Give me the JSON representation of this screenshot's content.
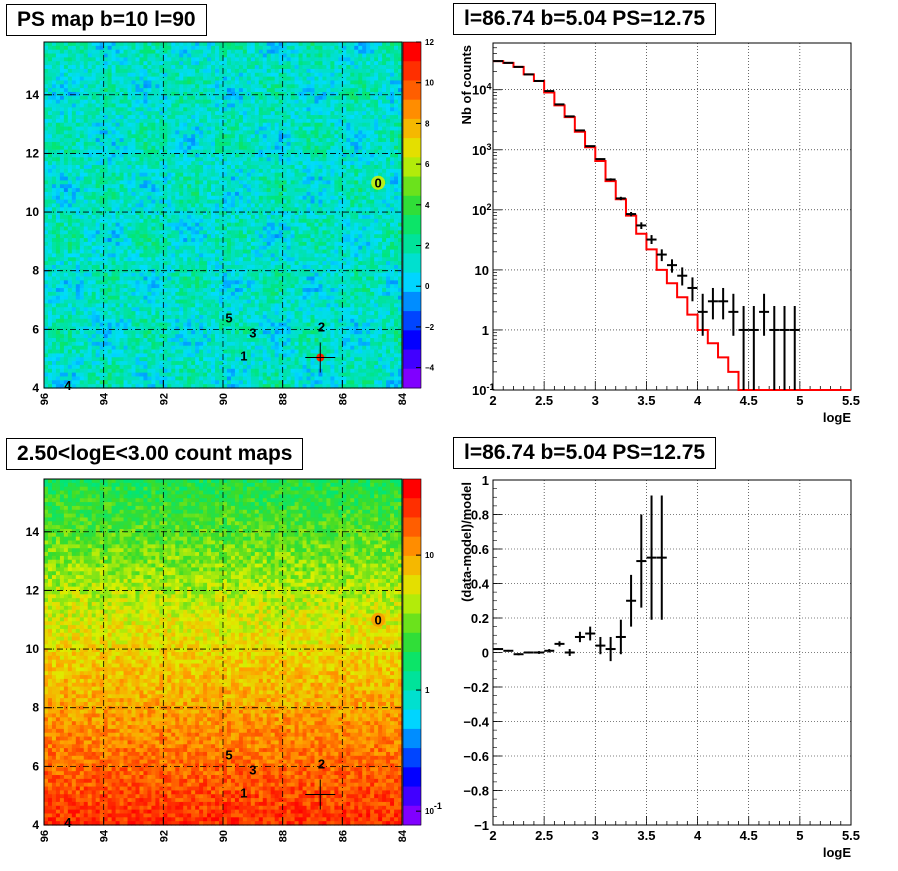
{
  "panels": {
    "ps_map": {
      "title": "PS map b=10 l=90"
    },
    "spectrum": {
      "title": "l=86.74 b=5.04 PS=12.75"
    },
    "count_map": {
      "title": "2.50<logE<3.00 count maps"
    },
    "residual": {
      "title": "l=86.74 b=5.04 PS=12.75"
    }
  },
  "chart_data": [
    {
      "id": "ps_map",
      "type": "heatmap",
      "title": "PS map b=10 l=90",
      "x_ticks": [
        "96",
        "94",
        "92",
        "90",
        "88",
        "86",
        "84"
      ],
      "y_ticks": [
        "4",
        "6",
        "8",
        "10",
        "12",
        "14"
      ],
      "xlim": [
        96,
        84
      ],
      "ylim": [
        4,
        15.8
      ],
      "colorbar_ticks": [
        "12",
        "10",
        "8",
        "6",
        "4",
        "2",
        "0",
        "−2",
        "−4"
      ],
      "colorbar_range": [
        -5,
        12
      ],
      "sources": [
        {
          "label": "0",
          "l": 84.8,
          "b": 11.0
        },
        {
          "label": "1",
          "l": 89.3,
          "b": 5.1
        },
        {
          "label": "2",
          "l": 86.7,
          "b": 6.1
        },
        {
          "label": "3",
          "l": 89.0,
          "b": 5.9
        },
        {
          "label": "4",
          "l": 95.2,
          "b": 4.1
        },
        {
          "label": "5",
          "l": 89.8,
          "b": 6.4
        }
      ],
      "marker": {
        "l": 86.74,
        "b": 5.04
      }
    },
    {
      "id": "spectrum",
      "type": "line",
      "title": "l=86.74 b=5.04 PS=12.75",
      "xlabel": "logE",
      "ylabel": "Nb of counts",
      "yscale": "log",
      "xlim": [
        2,
        5.5
      ],
      "ylim": [
        0.1,
        60000
      ],
      "x_ticks": [
        "2",
        "2.5",
        "3",
        "3.5",
        "4",
        "4.5",
        "5",
        "5.5"
      ],
      "y_ticks": [
        "10^{-1}",
        "1",
        "10",
        "10^{2}",
        "10^{3}",
        "10^{4}"
      ],
      "grid": true,
      "model_step": {
        "color": "#ff0000",
        "edges": [
          2.0,
          2.1,
          2.2,
          2.3,
          2.4,
          2.5,
          2.6,
          2.7,
          2.8,
          2.9,
          3.0,
          3.1,
          3.2,
          3.3,
          3.4,
          3.5,
          3.6,
          3.7,
          3.8,
          3.9,
          4.0,
          4.1,
          4.2,
          4.3,
          4.4,
          4.5,
          4.6,
          4.7,
          4.8,
          4.9,
          5.0,
          5.1,
          5.2,
          5.3,
          5.4,
          5.5
        ],
        "values": [
          30000,
          28000,
          24000,
          18000,
          14000,
          9000,
          5500,
          3500,
          2000,
          1100,
          650,
          300,
          150,
          80,
          40,
          22,
          10,
          6,
          3.5,
          1.8,
          1.0,
          0.6,
          0.35,
          0.2,
          0.1,
          0.1,
          0.1,
          0.1,
          0.1,
          0.1,
          0.1,
          0.1,
          0.1,
          0.1,
          0.1
        ]
      },
      "data_points": {
        "color": "#000000",
        "x": [
          2.05,
          2.15,
          2.25,
          2.35,
          2.45,
          2.55,
          2.65,
          2.75,
          2.85,
          2.95,
          3.05,
          3.15,
          3.25,
          3.35,
          3.45,
          3.55,
          3.65,
          3.75,
          3.85,
          3.95,
          4.05,
          4.15,
          4.25,
          4.35,
          4.45,
          4.55,
          4.65,
          4.75,
          4.85,
          4.95
        ],
        "y": [
          30000,
          28000,
          24000,
          18000,
          14000,
          9500,
          5700,
          3600,
          2100,
          1150,
          700,
          320,
          155,
          85,
          55,
          32,
          18,
          12,
          8,
          5,
          2,
          3,
          3,
          2,
          1,
          1,
          2,
          1,
          1,
          1
        ],
        "y_low": [
          29800,
          27800,
          23800,
          17800,
          13800,
          9400,
          5600,
          3500,
          2050,
          1120,
          680,
          305,
          145,
          78,
          48,
          27,
          14,
          9,
          5.5,
          3,
          0.8,
          1.5,
          1.5,
          0.8,
          0.1,
          0.1,
          0.8,
          0.1,
          0.1,
          0.1
        ],
        "y_high": [
          30200,
          28200,
          24200,
          18200,
          14200,
          9600,
          5800,
          3700,
          2150,
          1180,
          720,
          335,
          165,
          92,
          62,
          38,
          22,
          15,
          11,
          7.5,
          4,
          5,
          5,
          4,
          2.5,
          2.5,
          4,
          2.5,
          2.5,
          2.5
        ]
      }
    },
    {
      "id": "count_map",
      "type": "heatmap",
      "title": "2.50<logE<3.00 count maps",
      "x_ticks": [
        "96",
        "94",
        "92",
        "90",
        "88",
        "86",
        "84"
      ],
      "y_ticks": [
        "4",
        "6",
        "8",
        "10",
        "12",
        "14"
      ],
      "xlim": [
        96,
        84
      ],
      "ylim": [
        4,
        15.8
      ],
      "colorbar_scale": "log",
      "colorbar_ticks": [
        "10",
        "1",
        "10^{-1}"
      ],
      "sources": [
        {
          "label": "0",
          "l": 84.8,
          "b": 11.0
        },
        {
          "label": "1",
          "l": 89.3,
          "b": 5.1
        },
        {
          "label": "2",
          "l": 86.7,
          "b": 6.1
        },
        {
          "label": "3",
          "l": 89.0,
          "b": 5.9
        },
        {
          "label": "4",
          "l": 95.2,
          "b": 4.1
        },
        {
          "label": "5",
          "l": 89.8,
          "b": 6.4
        }
      ],
      "marker": {
        "l": 86.74,
        "b": 5.04
      }
    },
    {
      "id": "residual",
      "type": "scatter",
      "title": "l=86.74 b=5.04 PS=12.75",
      "xlabel": "logE",
      "ylabel": "(data-model)/model",
      "xlim": [
        2,
        5.5
      ],
      "ylim": [
        -1,
        1
      ],
      "x_ticks": [
        "2",
        "2.5",
        "3",
        "3.5",
        "4",
        "4.5",
        "5",
        "5.5"
      ],
      "y_ticks": [
        "1",
        "0.8",
        "0.6",
        "0.4",
        "0.2",
        "0",
        "−0.2",
        "−0.4",
        "−0.6",
        "−0.8",
        "−1"
      ],
      "grid": true,
      "points": {
        "x": [
          2.05,
          2.15,
          2.25,
          2.35,
          2.45,
          2.55,
          2.65,
          2.75,
          2.85,
          2.95,
          3.05,
          3.15,
          3.25,
          3.35,
          3.45,
          3.55,
          3.65
        ],
        "y": [
          0.02,
          0.01,
          -0.01,
          0.0,
          0.0,
          0.01,
          0.05,
          0.0,
          0.09,
          0.11,
          0.04,
          0.02,
          0.09,
          0.3,
          0.53,
          0.55,
          0.55
        ],
        "err": [
          0.005,
          0.005,
          0.006,
          0.006,
          0.008,
          0.01,
          0.015,
          0.02,
          0.03,
          0.04,
          0.05,
          0.07,
          0.1,
          0.15,
          0.27,
          0.36,
          0.36
        ]
      }
    }
  ]
}
